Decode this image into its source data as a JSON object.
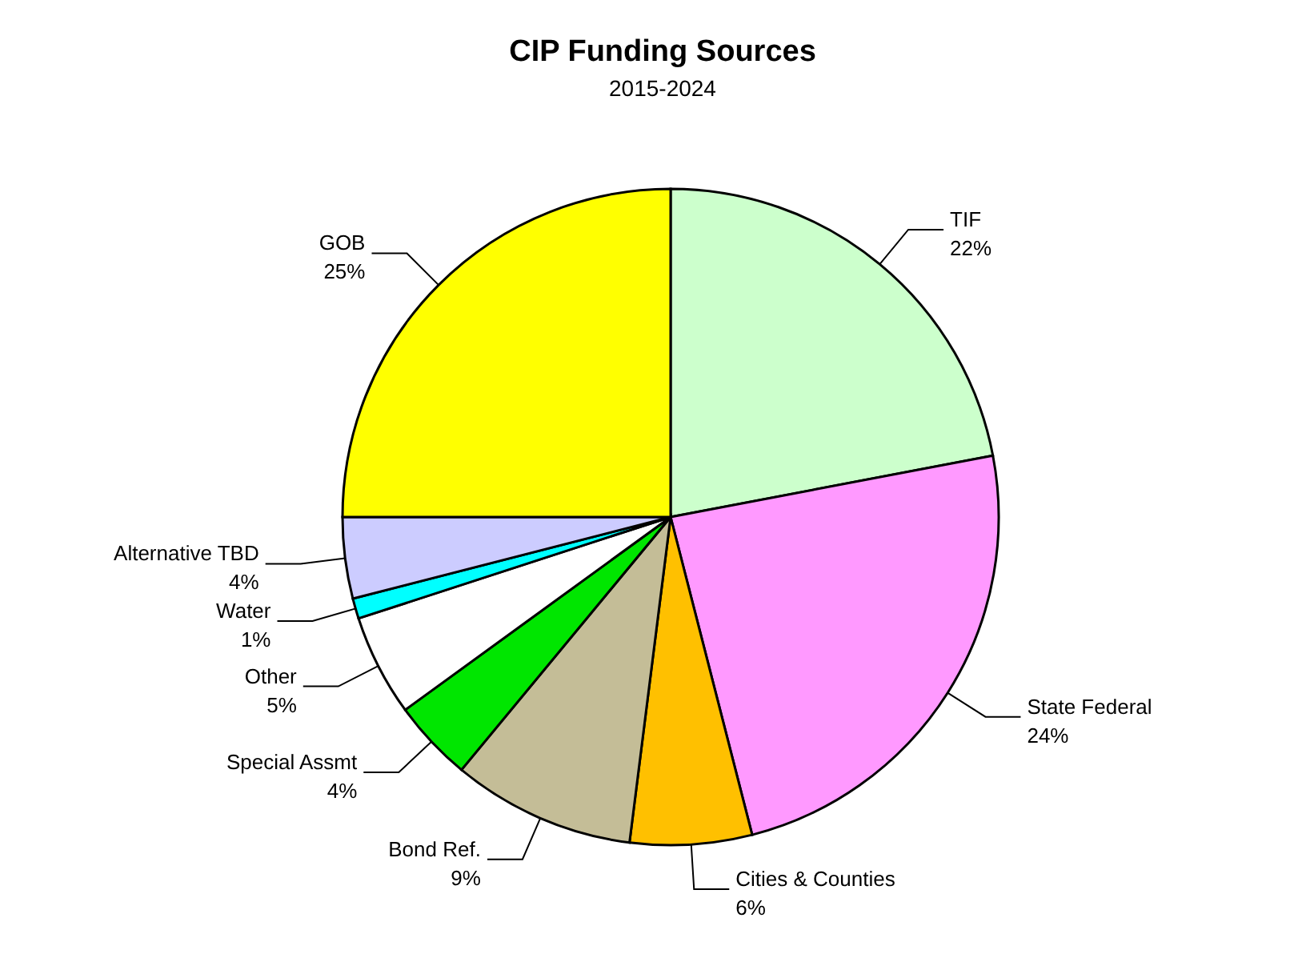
{
  "chart_data": {
    "type": "pie",
    "title": "CIP Funding Sources",
    "subtitle": "2015-2024",
    "categories": [
      "TIF",
      "State Federal",
      "Cities & Counties",
      "Bond Ref.",
      "Special Assmt",
      "Other",
      "Water",
      "Alternative TBD",
      "GOB"
    ],
    "values": [
      22,
      24,
      6,
      9,
      4,
      5,
      1,
      4,
      25
    ],
    "value_labels": [
      "22%",
      "24%",
      "6%",
      "9%",
      "4%",
      "5%",
      "1%",
      "4%",
      "25%"
    ],
    "colors": [
      "#ccffcc",
      "#ff99ff",
      "#ffc000",
      "#c4bd97",
      "#00e600",
      "#ffffff",
      "#00ffff",
      "#ccccff",
      "#ffff00"
    ]
  }
}
